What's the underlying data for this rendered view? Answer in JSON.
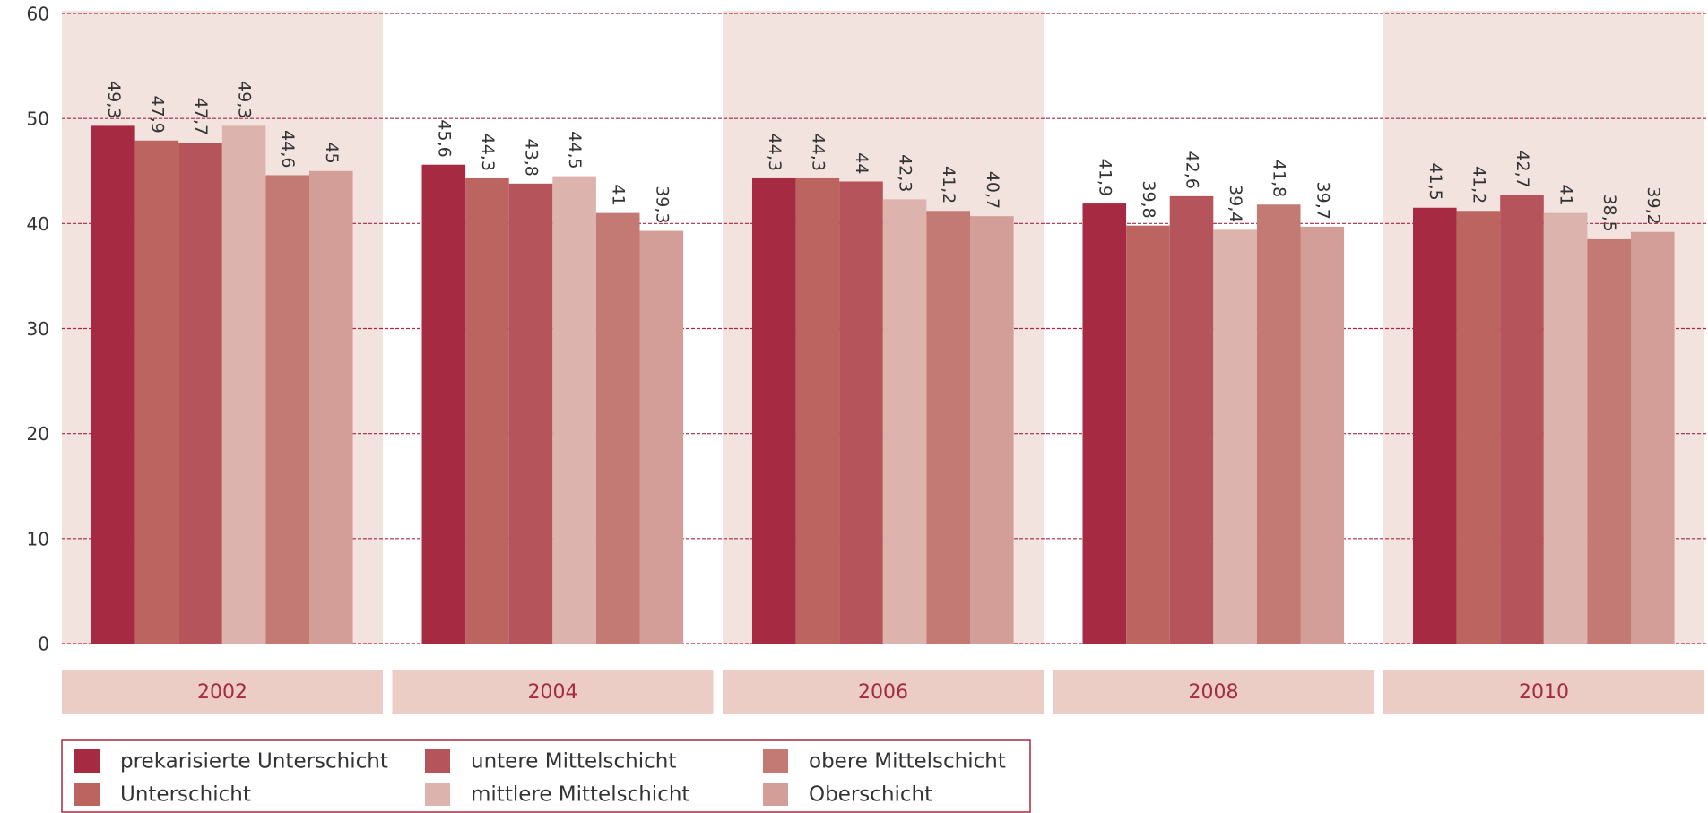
{
  "chart_data": {
    "type": "bar",
    "categories": [
      "2002",
      "2004",
      "2006",
      "2008",
      "2010"
    ],
    "series": [
      {
        "name": "prekarisierte Unterschicht",
        "color": "#a52a42",
        "values": [
          49.3,
          45.6,
          44.3,
          41.9,
          41.5
        ],
        "value_labels": [
          "49,3",
          "45,6",
          "44,3",
          "41,9",
          "41,5"
        ]
      },
      {
        "name": "Unterschicht",
        "color": "#bb6460",
        "values": [
          47.9,
          44.3,
          44.3,
          39.8,
          41.2
        ],
        "value_labels": [
          "47,9",
          "44,3",
          "44,3",
          "39,8",
          "41,2"
        ]
      },
      {
        "name": "untere Mittelschicht",
        "color": "#b5545a",
        "values": [
          47.7,
          43.8,
          44,
          42.6,
          42.7
        ],
        "value_labels": [
          "47,7",
          "43,8",
          "44",
          "42,6",
          "42,7"
        ]
      },
      {
        "name": "mittlere Mittelschicht",
        "color": "#ddb3ae",
        "values": [
          49.3,
          44.5,
          42.3,
          39.4,
          41
        ],
        "value_labels": [
          "49,3",
          "44,5",
          "42,3",
          "39,4",
          "41"
        ]
      },
      {
        "name": "obere Mittelschicht",
        "color": "#c47a74",
        "values": [
          44.6,
          41,
          41.2,
          41.8,
          38.5
        ],
        "value_labels": [
          "44,6",
          "41",
          "41,2",
          "41,8",
          "38,5"
        ]
      },
      {
        "name": "Oberschicht",
        "color": "#d49e98",
        "values": [
          45,
          39.3,
          40.7,
          39.7,
          39.2
        ],
        "value_labels": [
          "45",
          "39,3",
          "40,7",
          "39,7",
          "39,2"
        ]
      }
    ],
    "ylim": [
      0,
      60
    ],
    "yticks": [
      0,
      10,
      20,
      30,
      40,
      50,
      60
    ],
    "grid": true
  }
}
